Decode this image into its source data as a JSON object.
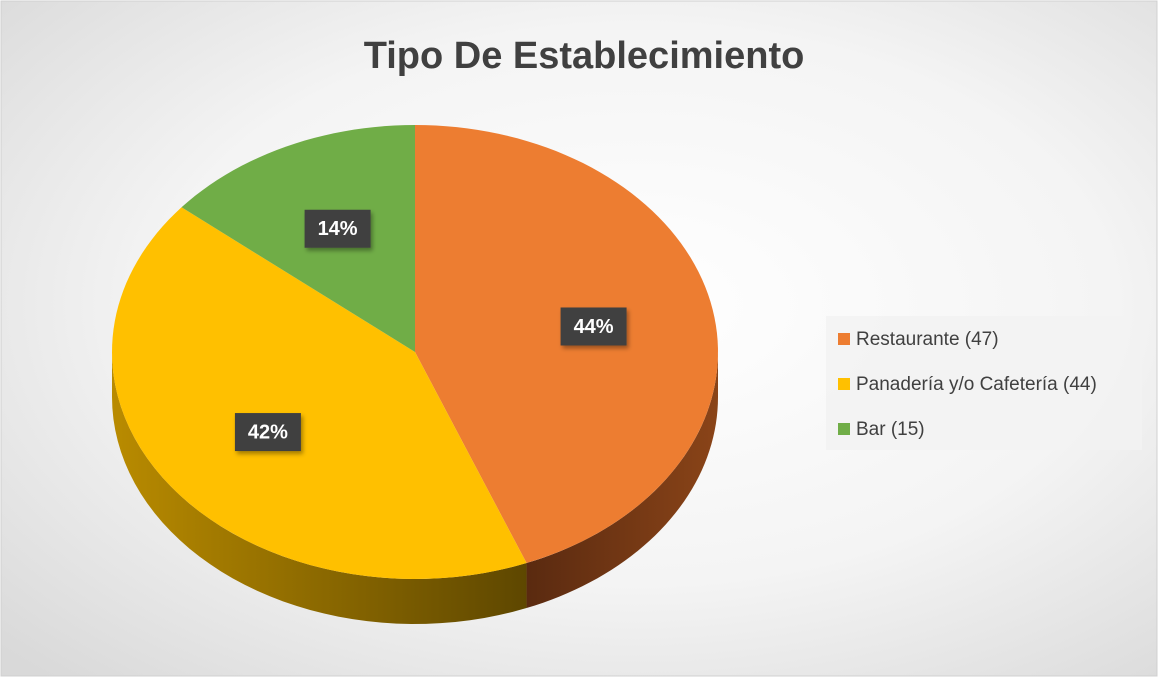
{
  "chart_data": {
    "type": "pie",
    "title": "Tipo De Establecimiento",
    "categories": [
      "Restaurante (47)",
      "Panadería y/o Cafetería (44)",
      "Bar (15)"
    ],
    "values": [
      44,
      42,
      14
    ],
    "value_labels": [
      "44%",
      "42%",
      "14%"
    ],
    "colors": [
      "#ed7d31",
      "#ffc000",
      "#70ad47"
    ],
    "legend": "right"
  }
}
